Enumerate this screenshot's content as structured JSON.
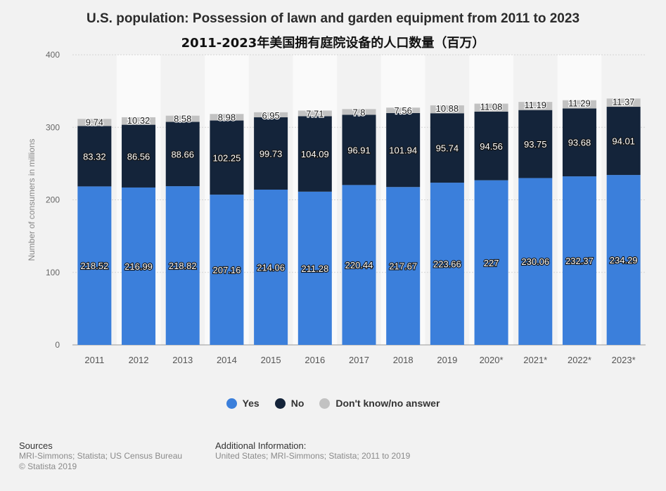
{
  "title": "U.S. population: Possession of lawn and garden equipment from 2011 to 2023",
  "subtitle": "2011-2023年美国拥有庭院设备的人口数量（百万）",
  "colors": {
    "yes": "#3b7fdb",
    "no": "#14243a",
    "dont_know": "#c2c2c2"
  },
  "chart_data": {
    "type": "bar",
    "stacked": true,
    "categories": [
      "2011",
      "2012",
      "2013",
      "2014",
      "2015",
      "2016",
      "2017",
      "2018",
      "2019",
      "2020*",
      "2021*",
      "2022*",
      "2023*"
    ],
    "series": [
      {
        "name": "Yes",
        "values": [
          218.52,
          216.99,
          218.82,
          207.16,
          214.06,
          211.28,
          220.44,
          217.67,
          223.66,
          227,
          230.06,
          232.37,
          234.29
        ]
      },
      {
        "name": "No",
        "values": [
          83.32,
          86.56,
          88.66,
          102.25,
          99.73,
          104.09,
          96.91,
          101.94,
          95.74,
          94.56,
          93.75,
          93.68,
          94.01
        ]
      },
      {
        "name": "Don't know/no answer",
        "values": [
          9.74,
          10.32,
          8.58,
          8.98,
          6.95,
          7.71,
          7.8,
          7.56,
          10.88,
          11.08,
          11.19,
          11.29,
          11.37
        ]
      }
    ],
    "ylabel": "Number of consumers in millions",
    "ylim": [
      0,
      400
    ],
    "yticks": [
      0,
      100,
      200,
      300,
      400
    ],
    "grid": true,
    "legend_position": "bottom"
  },
  "footer": {
    "sources_label": "Sources",
    "sources_text": "MRI-Simmons; Statista; US Census Bureau",
    "copyright": "© Statista 2019",
    "additional_label": "Additional Information:",
    "additional_text": "United States; MRI-Simmons; Statista; 2011 to 2019"
  }
}
